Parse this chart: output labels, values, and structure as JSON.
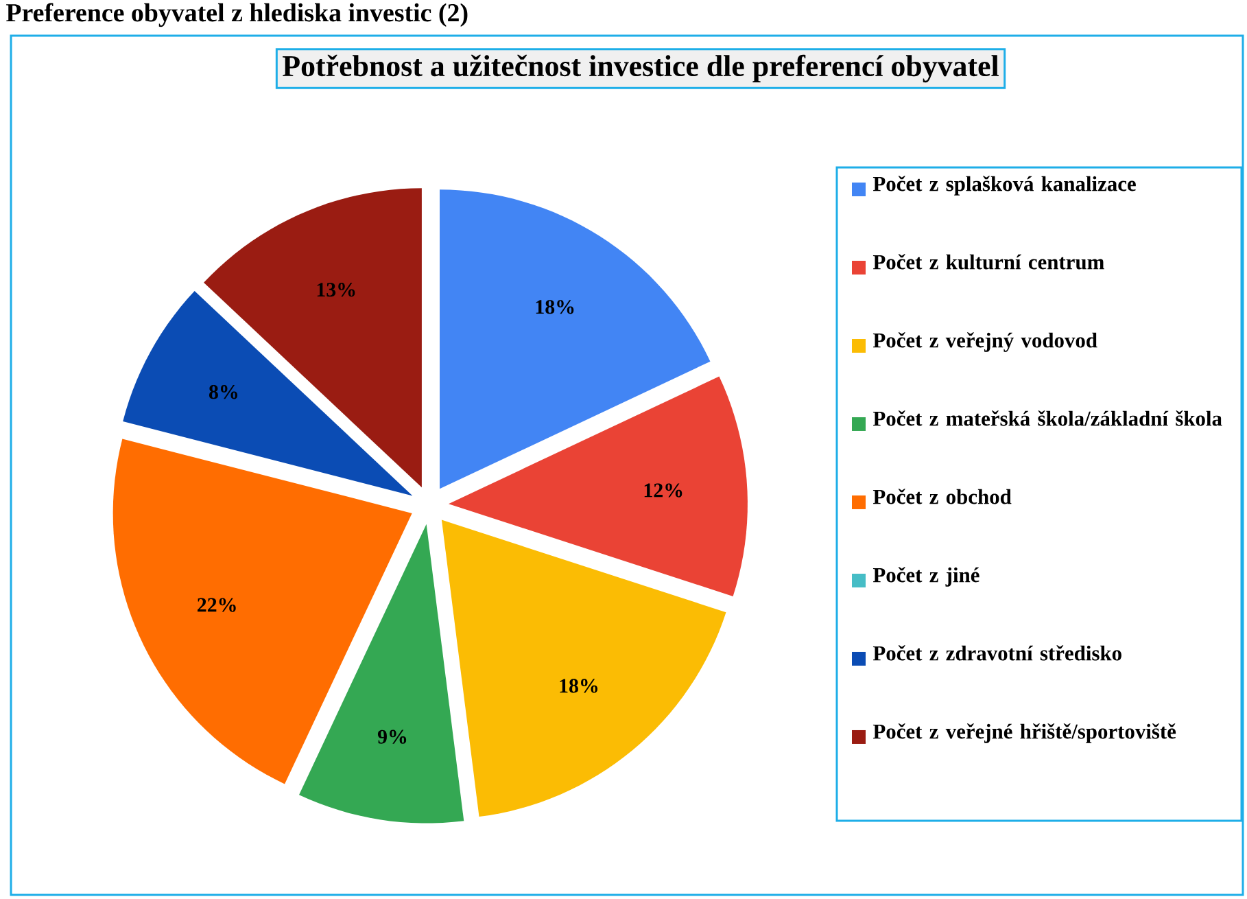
{
  "chart_data": {
    "type": "pie",
    "title": "Preference obyvatel z hlediska investic (2)",
    "subtitle": "Potřebnost a užitečnost investice dle preferencí obyvatel",
    "categories": [
      "Počet z splašková kanalizace",
      "Počet z  kulturní centrum",
      "Počet z  veřejný vodovod",
      "Počet z  mateřská škola/základní škola",
      "Počet z  obchod",
      "Počet z jiné",
      "Počet z  zdravotní středisko",
      "Počet z  veřejné hřiště/sportoviště"
    ],
    "values": [
      18,
      12,
      18,
      9,
      22,
      0,
      8,
      13
    ],
    "colors": [
      "#4285f4",
      "#ea4335",
      "#fbbc04",
      "#34a853",
      "#ff6d01",
      "#46bdc6",
      "#0b4cb4",
      "#9a1c12"
    ],
    "value_labels": [
      "18%",
      "12%",
      "18%",
      "9%",
      "22%",
      null,
      "8%",
      "13%"
    ],
    "legend": "right"
  }
}
